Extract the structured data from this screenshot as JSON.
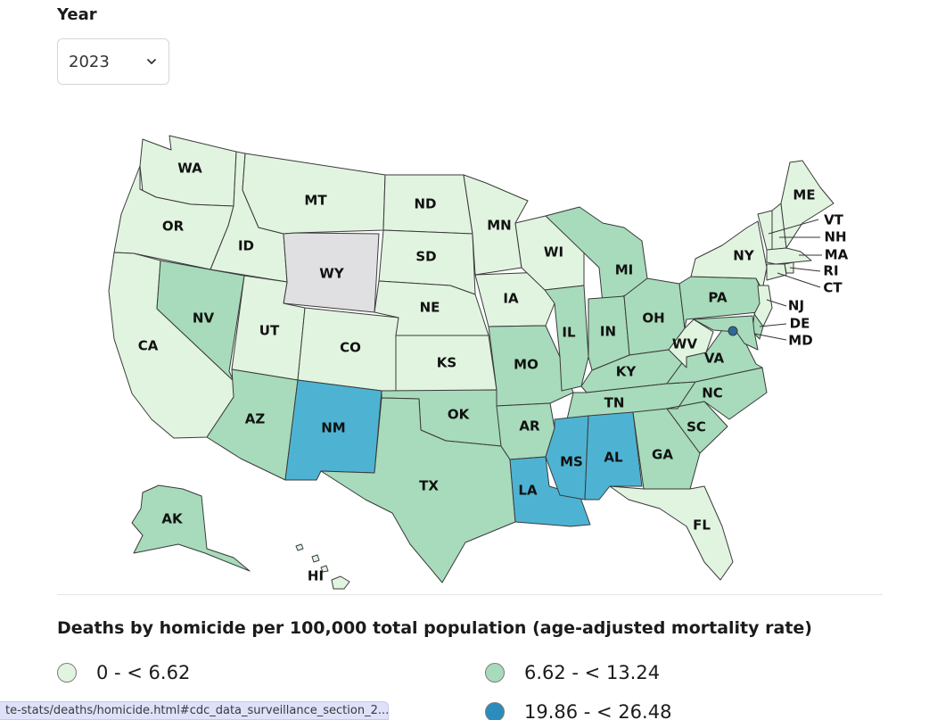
{
  "filter": {
    "label": "Year",
    "selected": "2023"
  },
  "legend": {
    "title": "Deaths by homicide per 100,000 total population (age-adjusted mortality rate)",
    "items": [
      {
        "range": "0 - < 6.62",
        "color": "#e1f4e0"
      },
      {
        "range": "6.62 - < 13.24",
        "color": "#a7dbbb"
      },
      {
        "range": "19.86 - < 26.48",
        "color": "#2b8cbe"
      }
    ]
  },
  "colors": {
    "c1": "#e1f4e0",
    "c2": "#a7dbbb",
    "c3": "#4eb3d3",
    "nodata": "#e0e0e2",
    "dc": "#2b6a99"
  },
  "states": {
    "WA": "c1",
    "OR": "c1",
    "CA": "c1",
    "ID": "c1",
    "MT": "c1",
    "WY": "nodata",
    "NV": "c2",
    "UT": "c1",
    "AZ": "c2",
    "CO": "c1",
    "NM": "c3",
    "ND": "c1",
    "SD": "c1",
    "NE": "c1",
    "KS": "c1",
    "OK": "c2",
    "TX": "c2",
    "MN": "c1",
    "IA": "c1",
    "MO": "c2",
    "AR": "c2",
    "LA": "c3",
    "WI": "c1",
    "IL": "c2",
    "MI": "c2",
    "IN": "c2",
    "OH": "c2",
    "KY": "c2",
    "TN": "c2",
    "MS": "c3",
    "AL": "c3",
    "GA": "c2",
    "FL": "c1",
    "SC": "c2",
    "NC": "c2",
    "VA": "c2",
    "WV": "c1",
    "PA": "c2",
    "NY": "c1",
    "VT": "c1",
    "NH": "c1",
    "ME": "c1",
    "MA": "c1",
    "RI": "c1",
    "CT": "c1",
    "NJ": "c1",
    "DE": "c2",
    "MD": "c2",
    "AK": "c2",
    "HI": "c1",
    "DC": "dc"
  },
  "status_url": "te-stats/deaths/homicide.html#cdc_data_surveillance_section_2..."
}
